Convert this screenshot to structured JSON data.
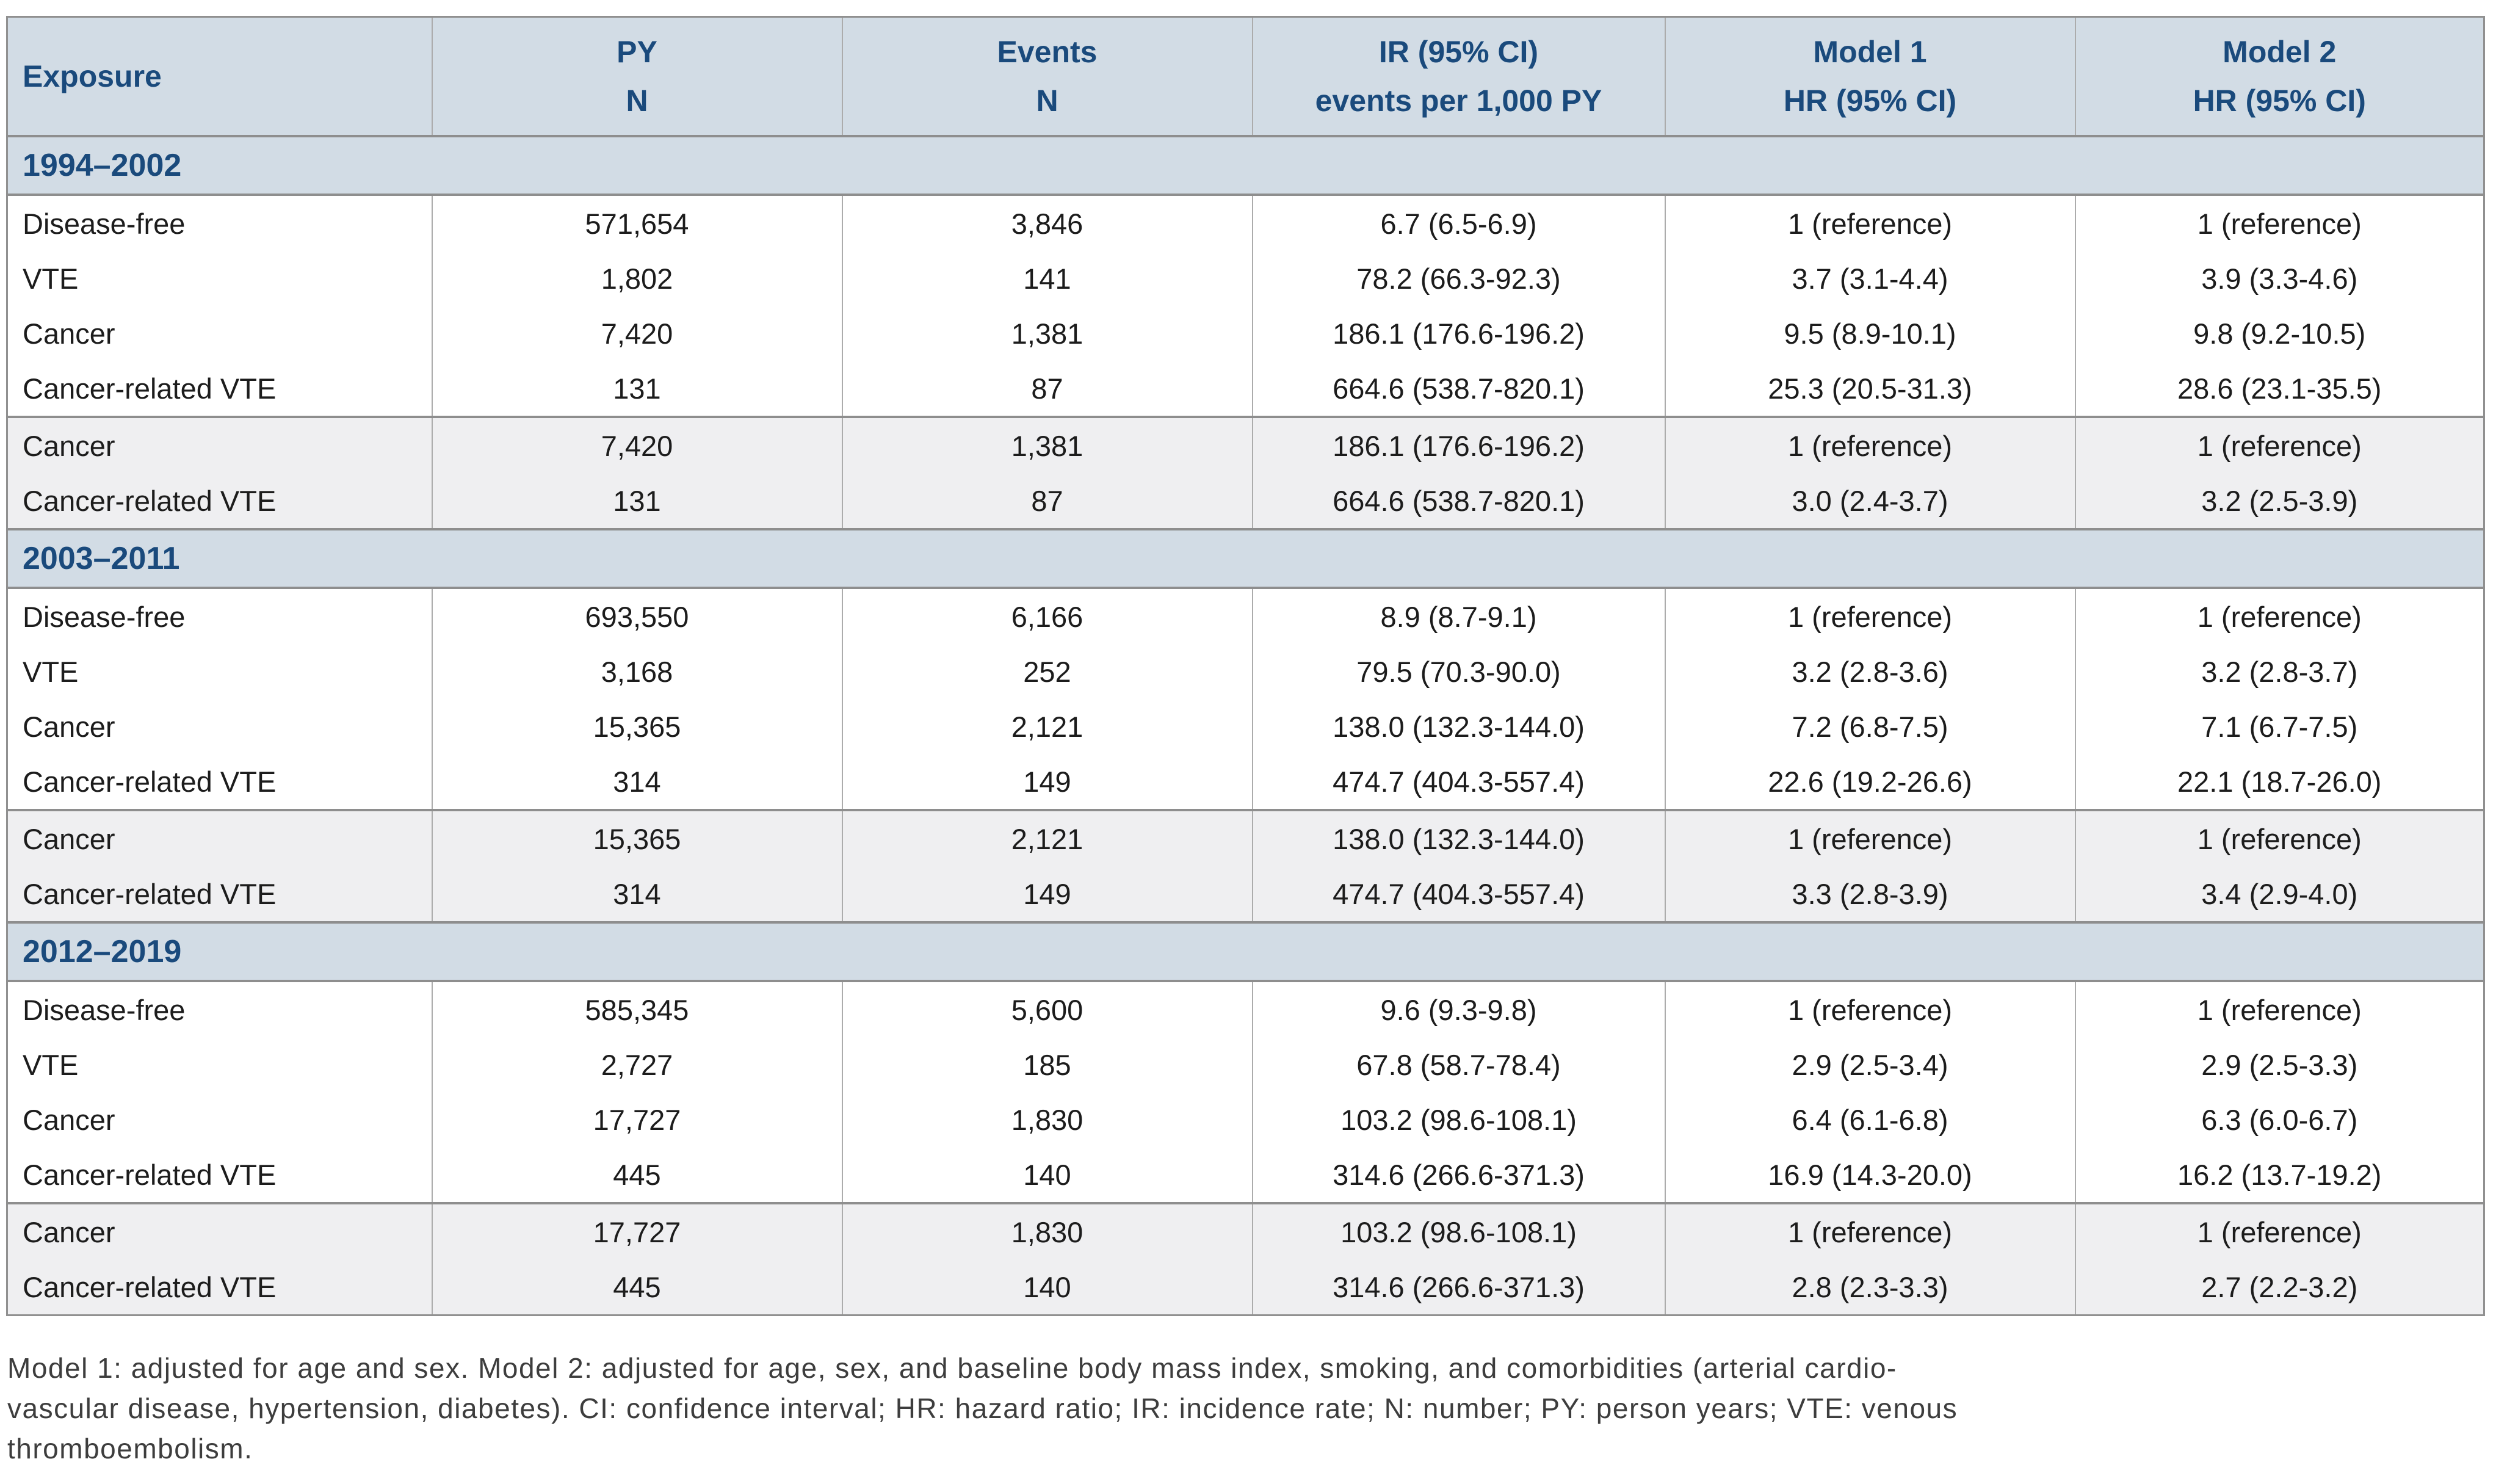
{
  "header": {
    "exposure": "Exposure",
    "py_line1": "PY",
    "py_line2": "N",
    "events_line1": "Events",
    "events_line2": "N",
    "ir_line1": "IR (95% CI)",
    "ir_line2": "events per 1,000 PY",
    "m1_line1": "Model 1",
    "m1_line2": "HR (95% CI)",
    "m2_line1": "Model 2",
    "m2_line2": "HR (95% CI)"
  },
  "colors": {
    "band_background": "#d2dce5",
    "heading_text": "#1a4a7c",
    "subblock_background": "#efeff1",
    "separator_line": "#8e8e8e"
  },
  "sections": [
    {
      "label": "1994–2002",
      "main_rows": [
        {
          "exposure": "Disease-free",
          "py": "571,654",
          "events": "3,846",
          "ir": "6.7 (6.5-6.9)",
          "m1": "1 (reference)",
          "m2": "1 (reference)"
        },
        {
          "exposure": "VTE",
          "py": "1,802",
          "events": "141",
          "ir": "78.2 (66.3-92.3)",
          "m1": "3.7 (3.1-4.4)",
          "m2": "3.9 (3.3-4.6)"
        },
        {
          "exposure": "Cancer",
          "py": "7,420",
          "events": "1,381",
          "ir": "186.1 (176.6-196.2)",
          "m1": "9.5 (8.9-10.1)",
          "m2": "9.8 (9.2-10.5)"
        },
        {
          "exposure": "Cancer-related VTE",
          "py": "131",
          "events": "87",
          "ir": "664.6 (538.7-820.1)",
          "m1": "25.3 (20.5-31.3)",
          "m2": "28.6 (23.1-35.5)"
        }
      ],
      "sub_rows": [
        {
          "exposure": "Cancer",
          "py": "7,420",
          "events": "1,381",
          "ir": "186.1 (176.6-196.2)",
          "m1": "1 (reference)",
          "m2": "1 (reference)"
        },
        {
          "exposure": "Cancer-related VTE",
          "py": "131",
          "events": "87",
          "ir": "664.6 (538.7-820.1)",
          "m1": "3.0 (2.4-3.7)",
          "m2": "3.2 (2.5-3.9)"
        }
      ]
    },
    {
      "label": "2003–2011",
      "main_rows": [
        {
          "exposure": "Disease-free",
          "py": "693,550",
          "events": "6,166",
          "ir": "8.9 (8.7-9.1)",
          "m1": "1 (reference)",
          "m2": "1 (reference)"
        },
        {
          "exposure": "VTE",
          "py": "3,168",
          "events": "252",
          "ir": "79.5 (70.3-90.0)",
          "m1": "3.2 (2.8-3.6)",
          "m2": "3.2 (2.8-3.7)"
        },
        {
          "exposure": "Cancer",
          "py": "15,365",
          "events": "2,121",
          "ir": "138.0 (132.3-144.0)",
          "m1": "7.2 (6.8-7.5)",
          "m2": "7.1 (6.7-7.5)"
        },
        {
          "exposure": "Cancer-related VTE",
          "py": "314",
          "events": "149",
          "ir": "474.7 (404.3-557.4)",
          "m1": "22.6 (19.2-26.6)",
          "m2": "22.1 (18.7-26.0)"
        }
      ],
      "sub_rows": [
        {
          "exposure": "Cancer",
          "py": "15,365",
          "events": "2,121",
          "ir": "138.0 (132.3-144.0)",
          "m1": "1 (reference)",
          "m2": "1 (reference)"
        },
        {
          "exposure": "Cancer-related VTE",
          "py": "314",
          "events": "149",
          "ir": "474.7 (404.3-557.4)",
          "m1": "3.3 (2.8-3.9)",
          "m2": "3.4 (2.9-4.0)"
        }
      ]
    },
    {
      "label": "2012–2019",
      "main_rows": [
        {
          "exposure": "Disease-free",
          "py": "585,345",
          "events": "5,600",
          "ir": "9.6 (9.3-9.8)",
          "m1": "1 (reference)",
          "m2": "1 (reference)"
        },
        {
          "exposure": "VTE",
          "py": "2,727",
          "events": "185",
          "ir": "67.8 (58.7-78.4)",
          "m1": "2.9 (2.5-3.4)",
          "m2": "2.9 (2.5-3.3)"
        },
        {
          "exposure": "Cancer",
          "py": "17,727",
          "events": "1,830",
          "ir": "103.2 (98.6-108.1)",
          "m1": "6.4 (6.1-6.8)",
          "m2": "6.3 (6.0-6.7)"
        },
        {
          "exposure": "Cancer-related VTE",
          "py": "445",
          "events": "140",
          "ir": "314.6 (266.6-371.3)",
          "m1": "16.9 (14.3-20.0)",
          "m2": "16.2 (13.7-19.2)"
        }
      ],
      "sub_rows": [
        {
          "exposure": "Cancer",
          "py": "17,727",
          "events": "1,830",
          "ir": "103.2 (98.6-108.1)",
          "m1": "1 (reference)",
          "m2": "1 (reference)"
        },
        {
          "exposure": "Cancer-related VTE",
          "py": "445",
          "events": "140",
          "ir": "314.6 (266.6-371.3)",
          "m1": "2.8 (2.3-3.3)",
          "m2": "2.7 (2.2-3.2)"
        }
      ]
    }
  ],
  "footnote": {
    "line1": "Model 1: adjusted for age and sex. Model 2: adjusted for age, sex, and baseline body mass index, smoking, and comorbidities (arterial cardio-",
    "line2": "vascular disease, hypertension, diabetes). CI: confidence interval; HR: hazard ratio; IR: incidence rate; N: number; PY: person years; VTE: venous",
    "line3": "thromboembolism."
  }
}
